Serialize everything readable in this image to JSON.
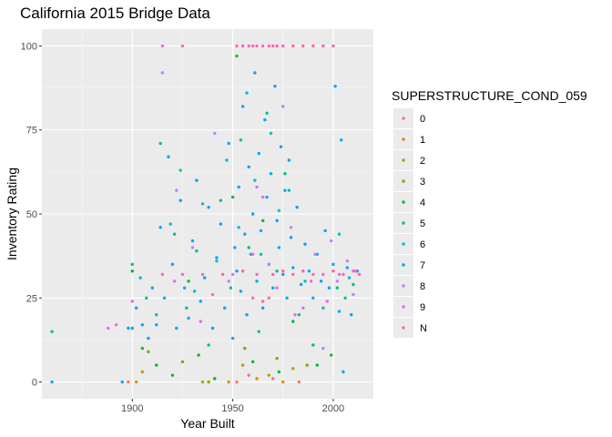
{
  "chart_data": {
    "type": "scatter",
    "title": "California 2015 Bridge Data",
    "xlabel": "Year Built",
    "ylabel": "Inventory Rating",
    "xlim": [
      1855,
      2020
    ],
    "ylim": [
      -5,
      105
    ],
    "x_ticks": [
      1900,
      1950,
      2000
    ],
    "x_tick_labels": [
      "1900",
      "1950",
      "2000"
    ],
    "y_ticks": [
      0,
      25,
      50,
      75,
      100
    ],
    "y_tick_labels": [
      "0",
      "25",
      "50",
      "75",
      "100"
    ],
    "grid": true,
    "legend": {
      "title": "SUPERSTRUCTURE_COND_059",
      "position": "right",
      "entries": [
        {
          "label": "0",
          "color": "#F8766D"
        },
        {
          "label": "1",
          "color": "#DE8C00"
        },
        {
          "label": "2",
          "color": "#B79F00"
        },
        {
          "label": "3",
          "color": "#7CAE00"
        },
        {
          "label": "4",
          "color": "#00BA38"
        },
        {
          "label": "5",
          "color": "#00C08B"
        },
        {
          "label": "6",
          "color": "#00BFC4"
        },
        {
          "label": "7",
          "color": "#00A5FF"
        },
        {
          "label": "8",
          "color": "#C77CFF"
        },
        {
          "label": "9",
          "color": "#F564E3"
        },
        {
          "label": "N",
          "color": "#FF64B0"
        }
      ]
    },
    "series": [
      {
        "name": "0",
        "points": [
          [
            1898,
            0
          ],
          [
            1952,
            0
          ],
          [
            1958,
            2
          ],
          [
            1970,
            1
          ],
          [
            1983,
            0
          ]
        ]
      },
      {
        "name": "1",
        "points": [
          [
            1902,
            0
          ],
          [
            1948,
            0
          ],
          [
            1962,
            1
          ],
          [
            1975,
            0
          ]
        ]
      },
      {
        "name": "2",
        "points": [
          [
            1905,
            3
          ],
          [
            1935,
            0
          ],
          [
            1955,
            5
          ],
          [
            1968,
            2
          ],
          [
            1980,
            4
          ]
        ]
      },
      {
        "name": "3",
        "points": [
          [
            1908,
            9
          ],
          [
            1925,
            6
          ],
          [
            1938,
            0
          ],
          [
            1956,
            10
          ],
          [
            1972,
            7
          ],
          [
            1987,
            5
          ]
        ]
      },
      {
        "name": "4",
        "points": [
          [
            1900,
            33
          ],
          [
            1905,
            10
          ],
          [
            1912,
            5
          ],
          [
            1920,
            2
          ],
          [
            1928,
            30
          ],
          [
            1933,
            8
          ],
          [
            1941,
            1
          ],
          [
            1950,
            55
          ],
          [
            1952,
            97
          ],
          [
            1960,
            6
          ],
          [
            1965,
            48
          ],
          [
            1973,
            3
          ],
          [
            1980,
            18
          ],
          [
            1992,
            5
          ],
          [
            1999,
            8
          ]
        ]
      },
      {
        "name": "5",
        "points": [
          [
            1860,
            15
          ],
          [
            1900,
            35
          ],
          [
            1907,
            25
          ],
          [
            1914,
            71
          ],
          [
            1921,
            44
          ],
          [
            1927,
            22
          ],
          [
            1932,
            39
          ],
          [
            1938,
            11
          ],
          [
            1944,
            54
          ],
          [
            1949,
            28
          ],
          [
            1954,
            72
          ],
          [
            1958,
            40
          ],
          [
            1963,
            15
          ],
          [
            1967,
            80
          ],
          [
            1972,
            33
          ],
          [
            1976,
            62
          ],
          [
            1983,
            20
          ],
          [
            1990,
            11
          ],
          [
            2002,
            28
          ],
          [
            2006,
            25
          ],
          [
            2010,
            29
          ]
        ]
      },
      {
        "name": "6",
        "points": [
          [
            1904,
            31
          ],
          [
            1912,
            20
          ],
          [
            1919,
            47
          ],
          [
            1924,
            63
          ],
          [
            1931,
            27
          ],
          [
            1935,
            53
          ],
          [
            1942,
            36
          ],
          [
            1947,
            66
          ],
          [
            1953,
            46
          ],
          [
            1957,
            86
          ],
          [
            1961,
            60
          ],
          [
            1964,
            38
          ],
          [
            1969,
            74
          ],
          [
            1973,
            51
          ],
          [
            1978,
            57
          ],
          [
            1986,
            30
          ],
          [
            1995,
            22
          ],
          [
            2003,
            44
          ],
          [
            2008,
            31
          ]
        ]
      },
      {
        "name": "7",
        "points": [
          [
            1860,
            0
          ],
          [
            1895,
            0
          ],
          [
            1898,
            16
          ],
          [
            1900,
            16
          ],
          [
            1902,
            22
          ],
          [
            1905,
            17
          ],
          [
            1908,
            13
          ],
          [
            1910,
            28
          ],
          [
            1912,
            17
          ],
          [
            1914,
            46
          ],
          [
            1916,
            25
          ],
          [
            1918,
            67
          ],
          [
            1920,
            35
          ],
          [
            1922,
            16
          ],
          [
            1924,
            54
          ],
          [
            1926,
            28
          ],
          [
            1928,
            19
          ],
          [
            1930,
            42
          ],
          [
            1932,
            60
          ],
          [
            1934,
            24
          ],
          [
            1936,
            31
          ],
          [
            1938,
            52
          ],
          [
            1940,
            16
          ],
          [
            1942,
            37
          ],
          [
            1944,
            47
          ],
          [
            1946,
            22
          ],
          [
            1948,
            71
          ],
          [
            1950,
            13
          ],
          [
            1951,
            40
          ],
          [
            1952,
            33
          ],
          [
            1953,
            58
          ],
          [
            1954,
            27
          ],
          [
            1955,
            82
          ],
          [
            1956,
            44
          ],
          [
            1957,
            20
          ],
          [
            1958,
            64
          ],
          [
            1959,
            38
          ],
          [
            1960,
            50
          ],
          [
            1961,
            92
          ],
          [
            1962,
            30
          ],
          [
            1963,
            68
          ],
          [
            1964,
            45
          ],
          [
            1965,
            22
          ],
          [
            1966,
            78
          ],
          [
            1967,
            55
          ],
          [
            1968,
            35
          ],
          [
            1969,
            62
          ],
          [
            1970,
            28
          ],
          [
            1971,
            88
          ],
          [
            1972,
            48
          ],
          [
            1973,
            40
          ],
          [
            1974,
            70
          ],
          [
            1975,
            32
          ],
          [
            1976,
            57
          ],
          [
            1977,
            25
          ],
          [
            1978,
            66
          ],
          [
            1979,
            43
          ],
          [
            1980,
            34
          ],
          [
            1982,
            52
          ],
          [
            1984,
            29
          ],
          [
            1986,
            41
          ],
          [
            1988,
            33
          ],
          [
            1990,
            25
          ],
          [
            1992,
            38
          ],
          [
            1994,
            30
          ],
          [
            1996,
            45
          ],
          [
            1998,
            28
          ],
          [
            2000,
            35
          ],
          [
            2001,
            88
          ],
          [
            2003,
            21
          ],
          [
            2004,
            72
          ],
          [
            2005,
            3
          ],
          [
            2007,
            34
          ],
          [
            2009,
            20
          ],
          [
            2012,
            33
          ]
        ]
      },
      {
        "name": "8",
        "points": [
          [
            1915,
            92
          ],
          [
            1922,
            57
          ],
          [
            1930,
            40
          ],
          [
            1941,
            74
          ],
          [
            1948,
            30
          ],
          [
            1955,
            100
          ],
          [
            1962,
            58
          ],
          [
            1968,
            35
          ],
          [
            1975,
            82
          ],
          [
            1979,
            46
          ],
          [
            1985,
            22
          ],
          [
            1991,
            38
          ],
          [
            1995,
            10
          ],
          [
            1999,
            42
          ],
          [
            2002,
            30
          ],
          [
            2007,
            36
          ],
          [
            2010,
            26
          ]
        ]
      },
      {
        "name": "9",
        "points": [
          [
            1888,
            16
          ],
          [
            1892,
            17
          ],
          [
            1900,
            24
          ],
          [
            1915,
            100
          ],
          [
            1921,
            30
          ],
          [
            1934,
            18
          ],
          [
            1940,
            26
          ],
          [
            1950,
            32
          ],
          [
            1960,
            38
          ],
          [
            1965,
            55
          ],
          [
            1972,
            28
          ],
          [
            1981,
            20
          ],
          [
            1989,
            30
          ],
          [
            1997,
            24
          ],
          [
            2003,
            32
          ],
          [
            2011,
            33
          ]
        ]
      },
      {
        "name": "N",
        "points": [
          [
            1925,
            100
          ],
          [
            1952,
            100
          ],
          [
            1955,
            100
          ],
          [
            1958,
            100
          ],
          [
            1960,
            100
          ],
          [
            1962,
            100
          ],
          [
            1965,
            100
          ],
          [
            1968,
            100
          ],
          [
            1970,
            100
          ],
          [
            1972,
            100
          ],
          [
            1975,
            100
          ],
          [
            1980,
            100
          ],
          [
            1985,
            100
          ],
          [
            1990,
            100
          ],
          [
            1995,
            100
          ],
          [
            2000,
            100
          ],
          [
            1915,
            32
          ],
          [
            1925,
            32
          ],
          [
            1935,
            32
          ],
          [
            1945,
            32
          ],
          [
            1955,
            33
          ],
          [
            1960,
            25
          ],
          [
            1962,
            32
          ],
          [
            1965,
            24
          ],
          [
            1968,
            25
          ],
          [
            1970,
            32
          ],
          [
            1975,
            33
          ],
          [
            1980,
            32
          ],
          [
            1985,
            33
          ],
          [
            1990,
            32
          ],
          [
            1995,
            32
          ],
          [
            2000,
            33
          ],
          [
            2005,
            32
          ],
          [
            2010,
            33
          ],
          [
            2013,
            32
          ]
        ]
      }
    ]
  }
}
